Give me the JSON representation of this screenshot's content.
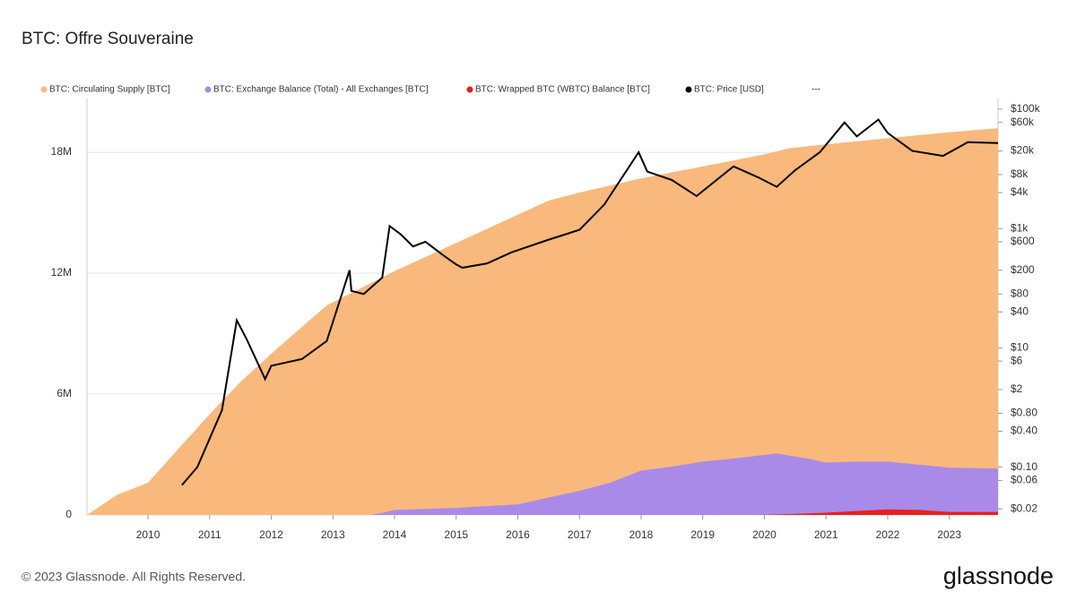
{
  "chart_data": {
    "type": "area",
    "title": "BTC: Offre Souveraine",
    "footer": "© 2023 Glassnode. All Rights Reserved.",
    "brand": "glassnode",
    "legend_extra": "---",
    "xlim": [
      2009.01,
      2023.79
    ],
    "xticks": [
      2010,
      2011,
      2012,
      2013,
      2014,
      2015,
      2016,
      2017,
      2018,
      2019,
      2020,
      2021,
      2022,
      2023
    ],
    "ylim": [
      0,
      20670000
    ],
    "yticks": [
      {
        "value": 0,
        "label": "0"
      },
      {
        "value": 6000000,
        "label": "6M"
      },
      {
        "value": 12000000,
        "label": "12M"
      },
      {
        "value": 18000000,
        "label": "18M"
      }
    ],
    "y2log": true,
    "y2lim": [
      0.0158,
      151000
    ],
    "y2ticks": [
      {
        "value": 100000,
        "label": "$100k"
      },
      {
        "value": 60000,
        "label": "$60k"
      },
      {
        "value": 20000,
        "label": "$20k"
      },
      {
        "value": 8000,
        "label": "$8k"
      },
      {
        "value": 4000,
        "label": "$4k"
      },
      {
        "value": 1000,
        "label": "$1k"
      },
      {
        "value": 600,
        "label": "$600"
      },
      {
        "value": 200,
        "label": "$200"
      },
      {
        "value": 80,
        "label": "$80"
      },
      {
        "value": 40,
        "label": "$40"
      },
      {
        "value": 10,
        "label": "$10"
      },
      {
        "value": 6,
        "label": "$6"
      },
      {
        "value": 2,
        "label": "$2"
      },
      {
        "value": 0.8,
        "label": "$0.80"
      },
      {
        "value": 0.4,
        "label": "$0.40"
      },
      {
        "value": 0.1,
        "label": "$0.10"
      },
      {
        "value": 0.06,
        "label": "$0.06"
      },
      {
        "value": 0.02,
        "label": "$0.02"
      }
    ],
    "grid": true,
    "series": [
      {
        "name": "BTC: Circulating Supply [BTC]",
        "color": "#f9b97c",
        "x": [
          2009.01,
          2009.5,
          2010.0,
          2010.5,
          2011.0,
          2011.5,
          2012.0,
          2012.9,
          2014.0,
          2015.0,
          2016.0,
          2016.5,
          2017.0,
          2018.0,
          2019.0,
          2020.0,
          2020.4,
          2021.0,
          2022.0,
          2023.0,
          2023.79
        ],
        "values": [
          0,
          1000000,
          1600000,
          3300000,
          5000000,
          6600000,
          8000000,
          10400000,
          12100000,
          13500000,
          14900000,
          15600000,
          16000000,
          16700000,
          17300000,
          17900000,
          18200000,
          18400000,
          18700000,
          19000000,
          19200000
        ]
      },
      {
        "name": "BTC: Exchange Balance (Total) - All Exchanges [BTC]",
        "color": "#a98ae8",
        "x": [
          2013.6,
          2013.8,
          2014.0,
          2015.0,
          2016.0,
          2017.0,
          2017.5,
          2018.0,
          2018.5,
          2019.0,
          2019.5,
          2020.2,
          2020.7,
          2021.0,
          2021.5,
          2022.0,
          2022.5,
          2023.0,
          2023.79
        ],
        "values": [
          0,
          100000,
          250000,
          350000,
          530000,
          1200000,
          1600000,
          2200000,
          2400000,
          2650000,
          2800000,
          3050000,
          2800000,
          2600000,
          2650000,
          2650000,
          2500000,
          2350000,
          2300000
        ]
      },
      {
        "name": "BTC: Wrapped BTC (WBTC) Balance [BTC]",
        "color": "#e8201b",
        "x": [
          2019.0,
          2020.0,
          2020.5,
          2021.0,
          2021.5,
          2022.0,
          2022.5,
          2023.0,
          2023.79
        ],
        "values": [
          0,
          5000,
          50000,
          110000,
          200000,
          280000,
          250000,
          150000,
          150000
        ]
      },
      {
        "name": "BTC: Price [USD]",
        "color": "#000000",
        "axis": "y2",
        "x": [
          2010.55,
          2010.8,
          2011.0,
          2011.2,
          2011.44,
          2011.6,
          2011.9,
          2012.0,
          2012.5,
          2012.9,
          2013.27,
          2013.3,
          2013.5,
          2013.8,
          2013.92,
          2014.1,
          2014.3,
          2014.5,
          2014.8,
          2015.0,
          2015.1,
          2015.5,
          2015.9,
          2016.5,
          2017.0,
          2017.4,
          2017.96,
          2018.1,
          2018.5,
          2018.9,
          2019.5,
          2019.9,
          2020.2,
          2020.5,
          2020.9,
          2021.3,
          2021.5,
          2021.85,
          2022.0,
          2022.4,
          2022.9,
          2023.3,
          2023.79
        ],
        "values": [
          0.05,
          0.1,
          0.3,
          0.9,
          29,
          14,
          3,
          5,
          6.5,
          13,
          200,
          90,
          80,
          150,
          1100,
          800,
          500,
          600,
          350,
          250,
          220,
          260,
          400,
          650,
          950,
          2500,
          19000,
          9000,
          6500,
          3500,
          11000,
          7200,
          5000,
          9500,
          19000,
          60000,
          35000,
          67000,
          40000,
          20000,
          16500,
          28000,
          27000
        ]
      }
    ]
  }
}
